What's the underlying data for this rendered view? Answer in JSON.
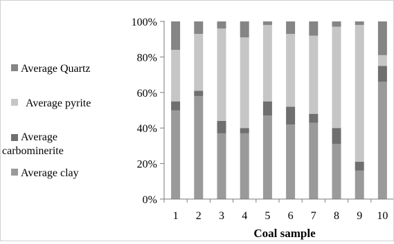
{
  "chart_data": {
    "type": "bar",
    "stacked": true,
    "normalized": true,
    "xlabel": "Coal sample",
    "ylabel": "",
    "categories": [
      "1",
      "2",
      "3",
      "4",
      "5",
      "6",
      "7",
      "8",
      "9",
      "10"
    ],
    "y_ticks": [
      "0%",
      "20%",
      "40%",
      "60%",
      "80%",
      "100%"
    ],
    "ylim": [
      0,
      100
    ],
    "grid": false,
    "legend_position": "left",
    "series": [
      {
        "name": "Average clay",
        "color": "#9a9a9a",
        "values": [
          50,
          58,
          37,
          37,
          47,
          42,
          43,
          31,
          16,
          66
        ]
      },
      {
        "name": "Average carbominerite",
        "color": "#6f6f6f",
        "values": [
          5,
          3,
          7,
          3,
          8,
          10,
          5,
          9,
          5,
          9
        ]
      },
      {
        "name": "Average pyrite",
        "color": "#c6c6c6",
        "values": [
          29,
          32,
          52,
          51,
          43,
          41,
          44,
          57,
          77,
          6
        ]
      },
      {
        "name": "Average Quartz",
        "color": "#858585",
        "values": [
          16,
          7,
          4,
          9,
          2,
          7,
          8,
          3,
          2,
          19
        ]
      }
    ],
    "legend_order": [
      "Average Quartz",
      "Average pyrite",
      "Average carbominerite",
      "Average clay"
    ]
  }
}
